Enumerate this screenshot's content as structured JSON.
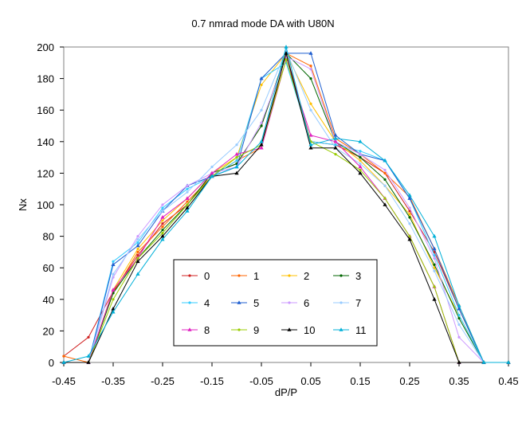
{
  "chart_data": {
    "type": "line",
    "title": "0.7 nmrad mode DA with U80N",
    "xlabel": "dP/P",
    "ylabel": "Nx",
    "xlim": [
      -0.45,
      0.45
    ],
    "ylim": [
      0,
      200
    ],
    "x_ticks": [
      "-0.45",
      "-0.35",
      "-0.25",
      "-0.15",
      "-0.05",
      "0.05",
      "0.15",
      "0.25",
      "0.35",
      "0.45"
    ],
    "y_ticks": [
      "0",
      "20",
      "40",
      "60",
      "80",
      "100",
      "120",
      "140",
      "160",
      "180",
      "200"
    ],
    "x": [
      -0.45,
      -0.4,
      -0.35,
      -0.3,
      -0.25,
      -0.2,
      -0.15,
      -0.1,
      -0.05,
      0,
      0.05,
      0.1,
      0.15,
      0.2,
      0.25,
      0.3,
      0.35,
      0.4,
      0.45
    ],
    "grid": false,
    "legend_position": "bottom-center",
    "series": [
      {
        "name": "0",
        "color": "#d02020",
        "marker": "dot",
        "values": [
          4,
          16,
          45,
          68,
          88,
          100,
          120,
          126,
          150,
          196,
          140,
          138,
          130,
          120,
          96,
          70,
          34,
          0,
          0
        ]
      },
      {
        "name": "1",
        "color": "#ff6600",
        "marker": "dot",
        "values": [
          4,
          0,
          44,
          70,
          86,
          102,
          118,
          128,
          136,
          196,
          188,
          142,
          132,
          120,
          105,
          72,
          36,
          0,
          0
        ]
      },
      {
        "name": "2",
        "color": "#ffc000",
        "marker": "dot",
        "values": [
          0,
          0,
          46,
          72,
          90,
          104,
          120,
          130,
          176,
          196,
          164,
          140,
          128,
          112,
          94,
          60,
          30,
          0,
          0
        ]
      },
      {
        "name": "3",
        "color": "#006600",
        "marker": "dot",
        "values": [
          0,
          0,
          44,
          66,
          84,
          100,
          120,
          126,
          150,
          196,
          180,
          140,
          130,
          116,
          92,
          62,
          28,
          0,
          0
        ]
      },
      {
        "name": "4",
        "color": "#33ccff",
        "marker": "dot",
        "values": [
          0,
          0,
          64,
          76,
          98,
          110,
          118,
          128,
          180,
          190,
          140,
          138,
          134,
          128,
          104,
          68,
          30,
          0,
          0
        ]
      },
      {
        "name": "5",
        "color": "#1f5fd0",
        "marker": "triangle",
        "values": [
          0,
          0,
          62,
          74,
          96,
          112,
          118,
          124,
          180,
          196,
          196,
          144,
          132,
          128,
          104,
          72,
          34,
          0,
          0
        ]
      },
      {
        "name": "6",
        "color": "#cc99ff",
        "marker": "dot",
        "values": [
          0,
          0,
          54,
          80,
          100,
          112,
          120,
          124,
          152,
          194,
          186,
          140,
          132,
          122,
          98,
          66,
          16,
          0,
          0
        ]
      },
      {
        "name": "7",
        "color": "#99ccff",
        "marker": "dot",
        "values": [
          0,
          0,
          56,
          78,
          96,
          108,
          124,
          138,
          160,
          198,
          160,
          136,
          126,
          112,
          88,
          58,
          24,
          0,
          0
        ]
      },
      {
        "name": "8",
        "color": "#e020c0",
        "marker": "triangle",
        "values": [
          0,
          0,
          46,
          66,
          92,
          104,
          120,
          132,
          136,
          192,
          144,
          140,
          124,
          104,
          80,
          48,
          0,
          0,
          0
        ]
      },
      {
        "name": "9",
        "color": "#99cc00",
        "marker": "dot",
        "values": [
          0,
          0,
          40,
          66,
          82,
          100,
          118,
          130,
          138,
          192,
          140,
          132,
          122,
          104,
          80,
          48,
          0,
          0,
          0
        ]
      },
      {
        "name": "10",
        "color": "#000000",
        "marker": "triangle",
        "values": [
          0,
          0,
          34,
          64,
          80,
          98,
          118,
          120,
          138,
          196,
          136,
          136,
          120,
          100,
          78,
          40,
          0,
          0,
          0
        ]
      },
      {
        "name": "11",
        "color": "#00b0d8",
        "marker": "triangle",
        "values": [
          0,
          4,
          32,
          56,
          78,
          96,
          118,
          124,
          140,
          200,
          138,
          142,
          140,
          128,
          106,
          80,
          36,
          0,
          0
        ]
      }
    ]
  }
}
